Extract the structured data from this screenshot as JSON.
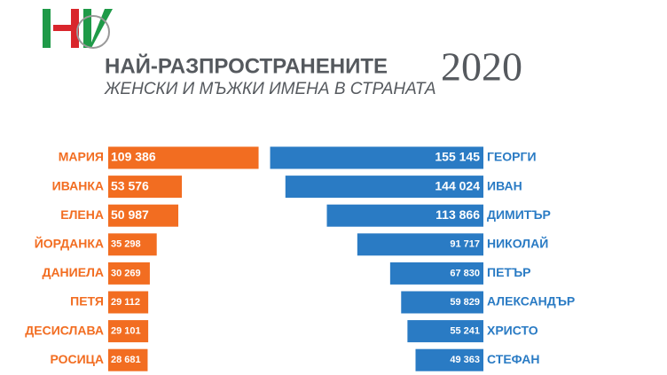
{
  "header": {
    "title": "НАЙ-РАЗПРОСТРАНЕНИТЕ",
    "subtitle": "ЖЕНСКИ И МЪЖКИ ИМЕНА В СТРАНАТА",
    "year": "2020"
  },
  "chart_data": [
    {
      "type": "bar",
      "orientation": "horizontal",
      "direction": "right",
      "color": "#f26d21",
      "categories": [
        "МАРИЯ",
        "ИВАНКА",
        "ЕЛЕНА",
        "ЙОРДАНКА",
        "ДАНИЕЛА",
        "ПЕТЯ",
        "ДЕСИСЛАВА",
        "РОСИЦА"
      ],
      "values": [
        109386,
        53576,
        50987,
        35298,
        30269,
        29112,
        29101,
        28681
      ],
      "value_labels": [
        "109 386",
        "53 576",
        "50 987",
        "35 298",
        "30 269",
        "29 112",
        "29 101",
        "28 681"
      ]
    },
    {
      "type": "bar",
      "orientation": "horizontal",
      "direction": "left",
      "color": "#2a7bc4",
      "categories": [
        "ГЕОРГИ",
        "ИВАН",
        "ДИМИТЪР",
        "НИКОЛАЙ",
        "ПЕТЪР",
        "АЛЕКСАНДЪР",
        "ХРИСТО",
        "СТЕФАН"
      ],
      "values": [
        155145,
        144024,
        113866,
        91717,
        67830,
        59829,
        55241,
        49363
      ],
      "value_labels": [
        "155 145",
        "144 024",
        "113 866",
        "91 717",
        "67 830",
        "59 829",
        "55 241",
        "49 363"
      ]
    }
  ]
}
